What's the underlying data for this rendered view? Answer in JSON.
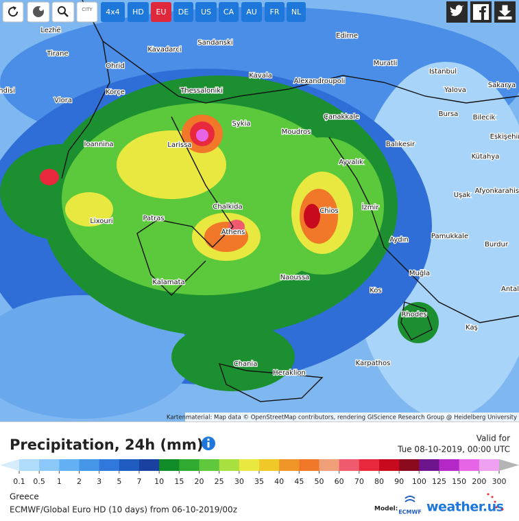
{
  "toolbar": {
    "buttons": [
      "CITY",
      "4x4",
      "HD",
      "EU",
      "DE",
      "US",
      "CA",
      "AU",
      "FR",
      "NL"
    ],
    "active": "EU"
  },
  "map": {
    "cities": [
      "Lezhë",
      "Tirane",
      "Kavadarci",
      "Sandanski",
      "Edirne",
      "Ohrid",
      "Kavala",
      "Alexandroupoli",
      "Muratli",
      "Istanbul",
      "ndisi",
      "Korçe",
      "Thessaloniki",
      "Yalova",
      "Sakarya",
      "Vlora",
      "Çanakkale",
      "Bursa",
      "Bilecik",
      "Sykia",
      "Moudros",
      "Balıkesir",
      "Eskişehir",
      "Ioannina",
      "Larissa",
      "Kütahya",
      "Ayvalık",
      "Afyonkarahisar",
      "Uşak",
      "İzmir",
      "Chalkida",
      "Chios",
      "Lixouri",
      "Patras",
      "Athens",
      "Aydın",
      "Pamukkale",
      "Burdur",
      "Naoussa",
      "Muğla",
      "Kalamata",
      "Kos",
      "Antal",
      "Rhodes",
      "Kaş",
      "Chania",
      "Heraklion",
      "Karpathos"
    ],
    "attribution": "Kartenmaterial: Map data © OpenStreetMap contributors, rendering GIScience Research Group @ Heidelberg University"
  },
  "legend": {
    "title": "Precipitation, 24h (mm)",
    "valid_label": "Valid for",
    "valid_time": "Tue 08-10-2019, 00:00 UTC",
    "ticks": [
      "0.1",
      "0.5",
      "1",
      "2",
      "3",
      "5",
      "7",
      "10",
      "15",
      "20",
      "25",
      "30",
      "35",
      "40",
      "45",
      "50",
      "60",
      "70",
      "80",
      "90",
      "100",
      "125",
      "150",
      "200",
      "300"
    ],
    "colors": [
      "#d4ecfc",
      "#b0dcfc",
      "#8cc8fa",
      "#64b0f4",
      "#4696e8",
      "#3078dc",
      "#1e5cc0",
      "#1a40a0",
      "#108c28",
      "#30aa30",
      "#60c83c",
      "#a8e040",
      "#e8e840",
      "#f0c828",
      "#f09628",
      "#f07828",
      "#f0a078",
      "#f05a6e",
      "#e8283c",
      "#c80a1e",
      "#8c0a1e",
      "#6e148c",
      "#b428c8",
      "#e664e6",
      "#f0a0f0",
      "#d2d2d2",
      "#b4b4b4"
    ]
  },
  "footer": {
    "region": "Greece",
    "source": "ECMWF/Global Euro HD (10 days) from 06-10-2019/00z",
    "model_label": "Model:",
    "model_logo": "ECMWF",
    "brand": "weather.us"
  }
}
